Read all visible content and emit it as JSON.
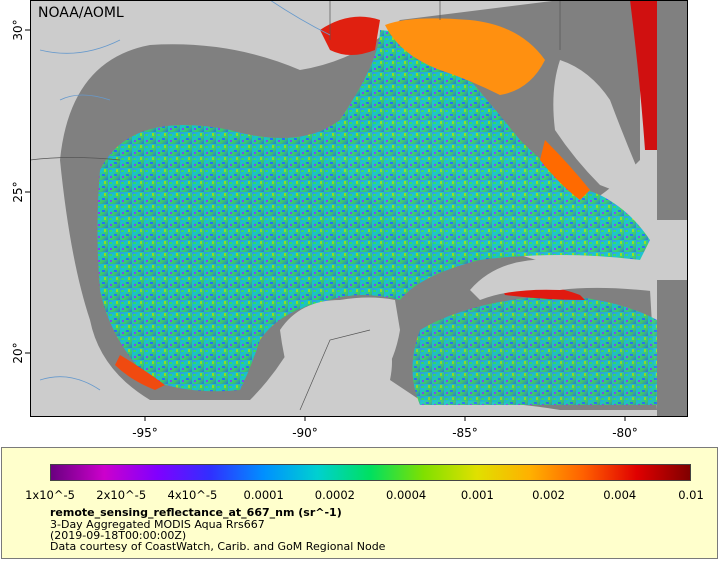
{
  "map": {
    "watermark": "NOAA/AOML",
    "x_ticks": [
      "-95°",
      "-90°",
      "-85°",
      "-80°"
    ],
    "y_ticks": [
      "30°",
      "25°",
      "20°"
    ],
    "colors": {
      "land": "#cccccc",
      "no_data": "#808080",
      "border": "#666666",
      "rivers": "#6699cc"
    }
  },
  "legend": {
    "tick_labels": [
      "1x10^-5",
      "2x10^-5",
      "4x10^-5",
      "0.0001",
      "0.0002",
      "0.0004",
      "0.001",
      "0.002",
      "0.004",
      "0.01"
    ],
    "title": "remote_sensing_reflectance_at_667_nm (sr^-1)",
    "line1": "3-Day Aggregated MODIS Aqua Rrs667",
    "line2": "(2019-09-18T00:00:00Z)",
    "line3": "Data courtesy of CoastWatch, Carib. and GoM Regional Node",
    "colormap": [
      "#6a0080",
      "#cc00cc",
      "#8000ff",
      "#3030ff",
      "#0090ff",
      "#00d0d0",
      "#00e060",
      "#80e000",
      "#e0e000",
      "#ffb000",
      "#ff6000",
      "#e00000",
      "#800000"
    ]
  }
}
